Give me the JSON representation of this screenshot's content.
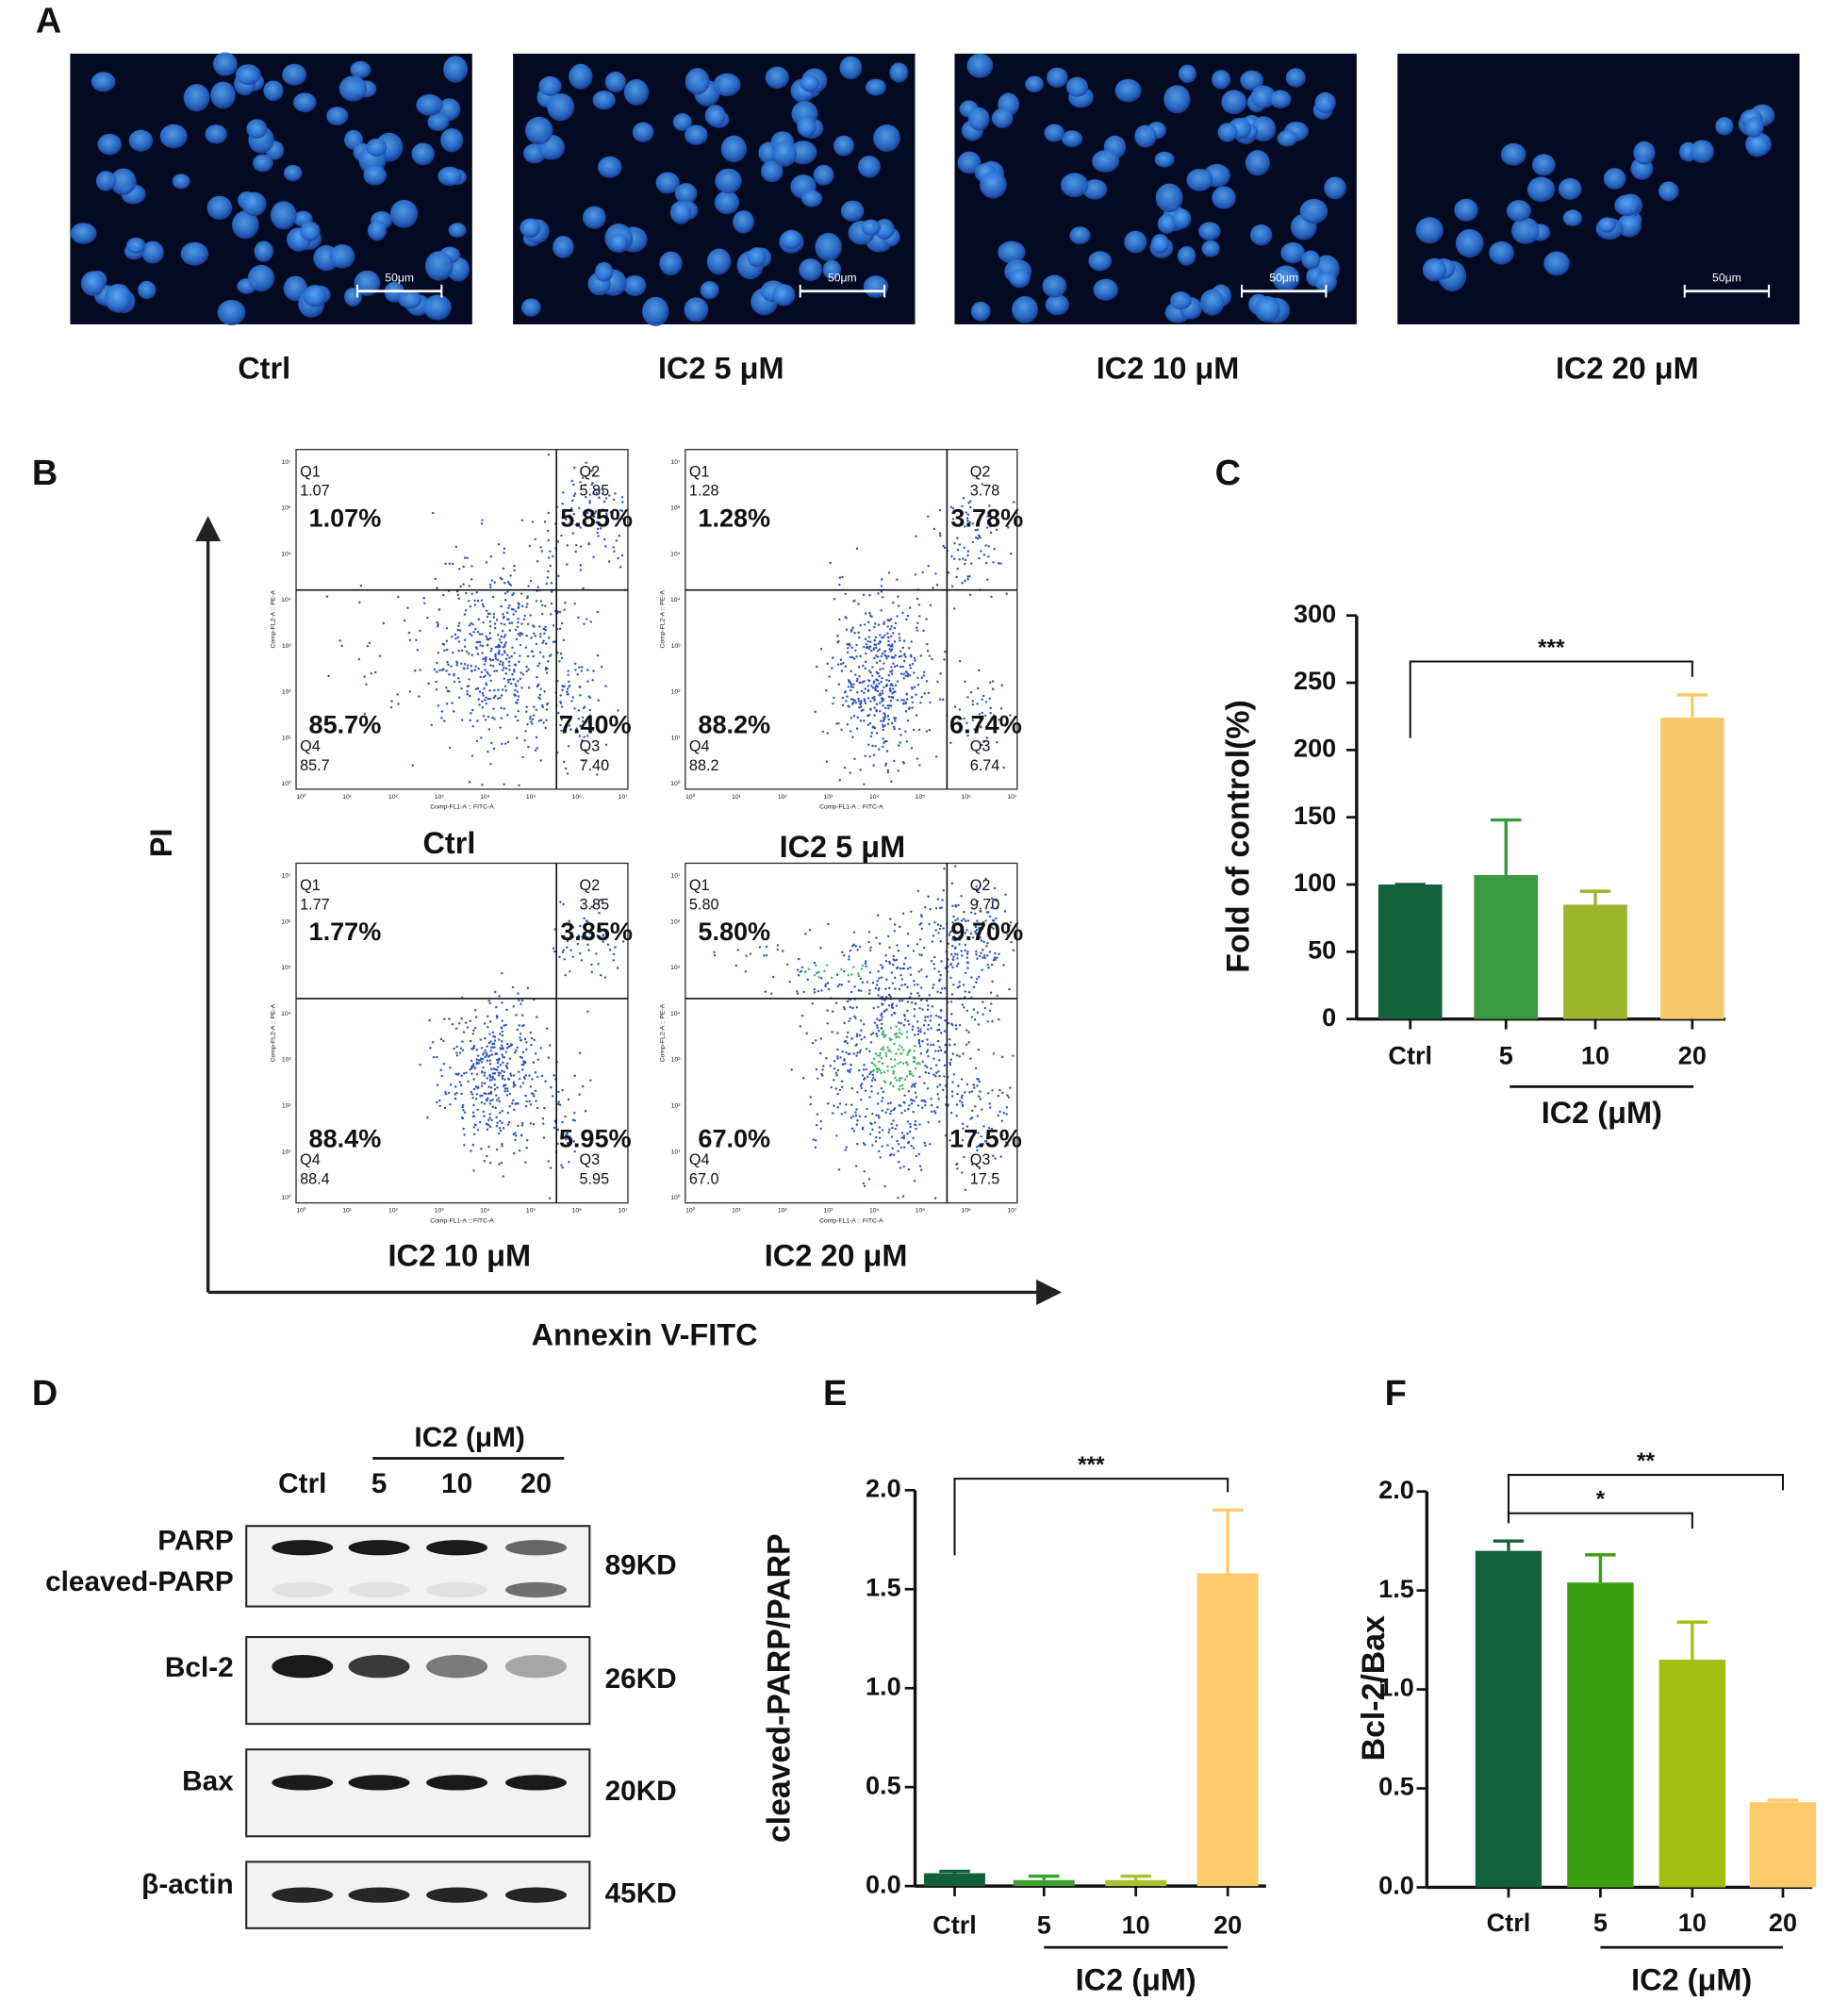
{
  "panel_letters": [
    "A",
    "B",
    "C",
    "D",
    "E",
    "F"
  ],
  "microscopy": {
    "scale_bar": "50μm",
    "conditions": [
      "Ctrl",
      "IC2 5 μM",
      "IC2 10 μM",
      "IC2 20 μM"
    ]
  },
  "flow": {
    "y_axis": "PI",
    "x_axis": "Annexin V-FITC",
    "plot_x_title": "Comp-FL1-A :: FITC-A",
    "plot_y_title": "Comp-FL2-A :: PE-A",
    "axis_ticks": [
      "10⁰",
      "10¹",
      "10²",
      "10³",
      "10⁴",
      "10⁵",
      "10⁶",
      "10⁷"
    ],
    "plots": [
      {
        "label": "Ctrl",
        "quadrants": [
          {
            "name": "Q1",
            "value": "1.07",
            "percent": "1.07%"
          },
          {
            "name": "Q2",
            "value": "5.85",
            "percent": "5.85%"
          },
          {
            "name": "Q3",
            "value": "7.40",
            "percent": "7.40%"
          },
          {
            "name": "Q4",
            "value": "85.7",
            "percent": "85.7%"
          }
        ]
      },
      {
        "label": "IC2 5 μM",
        "quadrants": [
          {
            "name": "Q1",
            "value": "1.28",
            "percent": "1.28%"
          },
          {
            "name": "Q2",
            "value": "3.78",
            "percent": "3.78%"
          },
          {
            "name": "Q3",
            "value": "6.74",
            "percent": "6.74%"
          },
          {
            "name": "Q4",
            "value": "88.2",
            "percent": "88.2%"
          }
        ]
      },
      {
        "label": "IC2 10 μM",
        "quadrants": [
          {
            "name": "Q1",
            "value": "1.77",
            "percent": "1.77%"
          },
          {
            "name": "Q2",
            "value": "3.85",
            "percent": "3.85%"
          },
          {
            "name": "Q3",
            "value": "5.95",
            "percent": "5.95%"
          },
          {
            "name": "Q4",
            "value": "88.4",
            "percent": "88.4%"
          }
        ]
      },
      {
        "label": "IC2 20 μM",
        "quadrants": [
          {
            "name": "Q1",
            "value": "5.80",
            "percent": "5.80%"
          },
          {
            "name": "Q2",
            "value": "9.70",
            "percent": "9.70%"
          },
          {
            "name": "Q3",
            "value": "17.5",
            "percent": "17.5%"
          },
          {
            "name": "Q4",
            "value": "67.0",
            "percent": "67.0%"
          }
        ]
      }
    ]
  },
  "western": {
    "group_label": "IC2 (μM)",
    "lanes": [
      "Ctrl",
      "5",
      "10",
      "20"
    ],
    "rows": [
      {
        "labels": [
          "PARP",
          "cleaved-PARP"
        ],
        "size": "89KD"
      },
      {
        "labels": [
          "Bcl-2"
        ],
        "size": "26KD"
      },
      {
        "labels": [
          "Bax"
        ],
        "size": "20KD"
      },
      {
        "labels": [
          "β-actin"
        ],
        "size": "45KD"
      }
    ]
  },
  "chart_data": [
    {
      "type": "bar",
      "y_label": "Fold of control(%)",
      "categories": [
        "Ctrl",
        "5",
        "10",
        "20"
      ],
      "group_label": "IC2 (μM)",
      "values": [
        100,
        107,
        85,
        224
      ],
      "errors": [
        0,
        41,
        10,
        17
      ],
      "colors": [
        "#13613a",
        "#3a9a42",
        "#9bb62a",
        "#f8c96c"
      ],
      "ylim": [
        0,
        300
      ],
      "yticks": [
        0,
        50,
        100,
        150,
        200,
        250,
        300
      ],
      "significance": [
        {
          "from": "Ctrl",
          "to": "20",
          "label": "***"
        }
      ]
    },
    {
      "type": "bar",
      "y_label": "cleaved-PARP/PARP",
      "categories": [
        "Ctrl",
        "5",
        "10",
        "20"
      ],
      "group_label": "IC2 (μM)",
      "values": [
        0.065,
        0.03,
        0.03,
        1.58
      ],
      "errors": [
        0.01,
        0.02,
        0.02,
        0.32
      ],
      "colors": [
        "#13613a",
        "#3aa02e",
        "#a8c42a",
        "#fdcb6c"
      ],
      "ylim": [
        0,
        2
      ],
      "yticks": [
        {
          "value": 0,
          "label": "0.0"
        },
        {
          "value": 0.5,
          "label": "0.5"
        },
        {
          "value": 1,
          "label": "1.0"
        },
        {
          "value": 1.5,
          "label": "1.5"
        },
        {
          "value": 2,
          "label": "2.0"
        }
      ],
      "significance": [
        {
          "from": "Ctrl",
          "to": "20",
          "label": "***"
        }
      ]
    },
    {
      "type": "bar",
      "y_label": "Bcl-2/Bax",
      "categories": [
        "Ctrl",
        "5",
        "10",
        "20"
      ],
      "group_label": "IC2 (μM)",
      "values": [
        1.7,
        1.54,
        1.15,
        0.43
      ],
      "errors": [
        0.05,
        0.14,
        0.19,
        0.01
      ],
      "colors": [
        "#13613a",
        "#3aa010",
        "#a3be12",
        "#fdcb6c"
      ],
      "ylim": [
        0,
        2
      ],
      "yticks": [
        {
          "value": 0,
          "label": "0.0"
        },
        {
          "value": 0.5,
          "label": "0.5"
        },
        {
          "value": 1,
          "label": "1.0"
        },
        {
          "value": 1.5,
          "label": "1.5"
        },
        {
          "value": 2,
          "label": "2.0"
        }
      ],
      "significance": [
        {
          "from": "Ctrl",
          "to": "20",
          "label": "**"
        },
        {
          "from": "Ctrl",
          "to": "10",
          "label": "*"
        }
      ]
    }
  ]
}
